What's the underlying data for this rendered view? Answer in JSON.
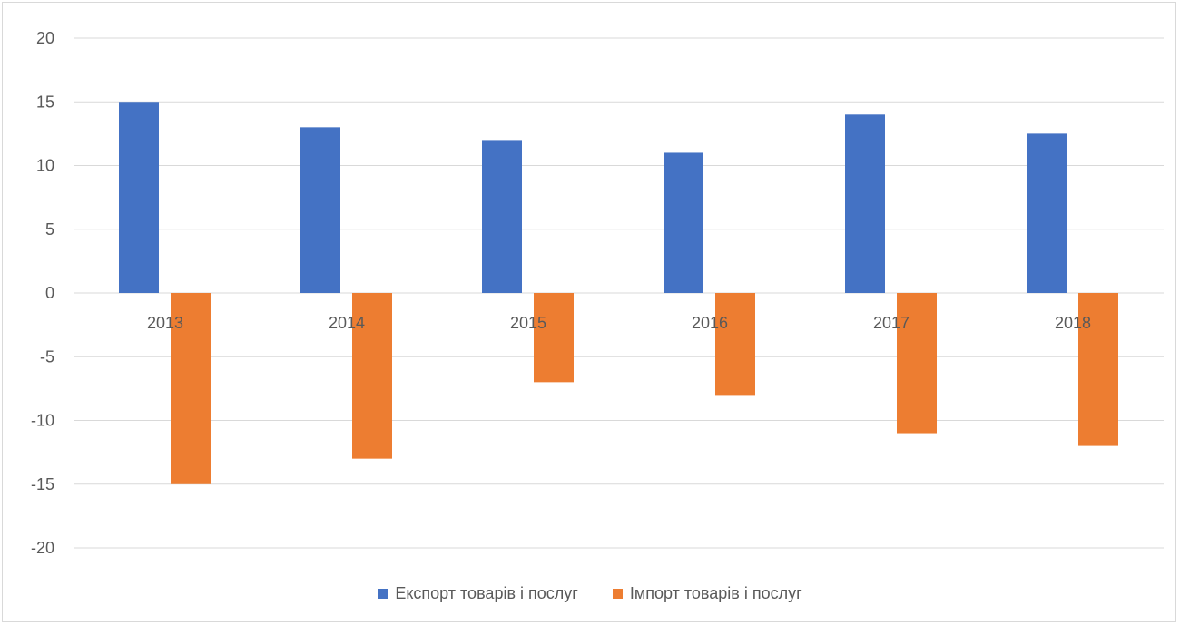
{
  "chart_data": {
    "type": "bar",
    "categories": [
      "2013",
      "2014",
      "2015",
      "2016",
      "2017",
      "2018"
    ],
    "series": [
      {
        "name": "Експорт товарів і послуг",
        "color": "#4472c4",
        "values": [
          15,
          13,
          12,
          11,
          14,
          12.5
        ]
      },
      {
        "name": "Імпорт товарів і послуг",
        "color": "#ed7d31",
        "values": [
          -15,
          -13,
          -7,
          -8,
          -11,
          -12
        ]
      }
    ],
    "ylim": [
      -20,
      20
    ],
    "yticks": [
      "20",
      "15",
      "10",
      "5",
      "0",
      "-5",
      "-10",
      "-15",
      "-20"
    ],
    "grid": true,
    "legend_position": "bottom"
  }
}
